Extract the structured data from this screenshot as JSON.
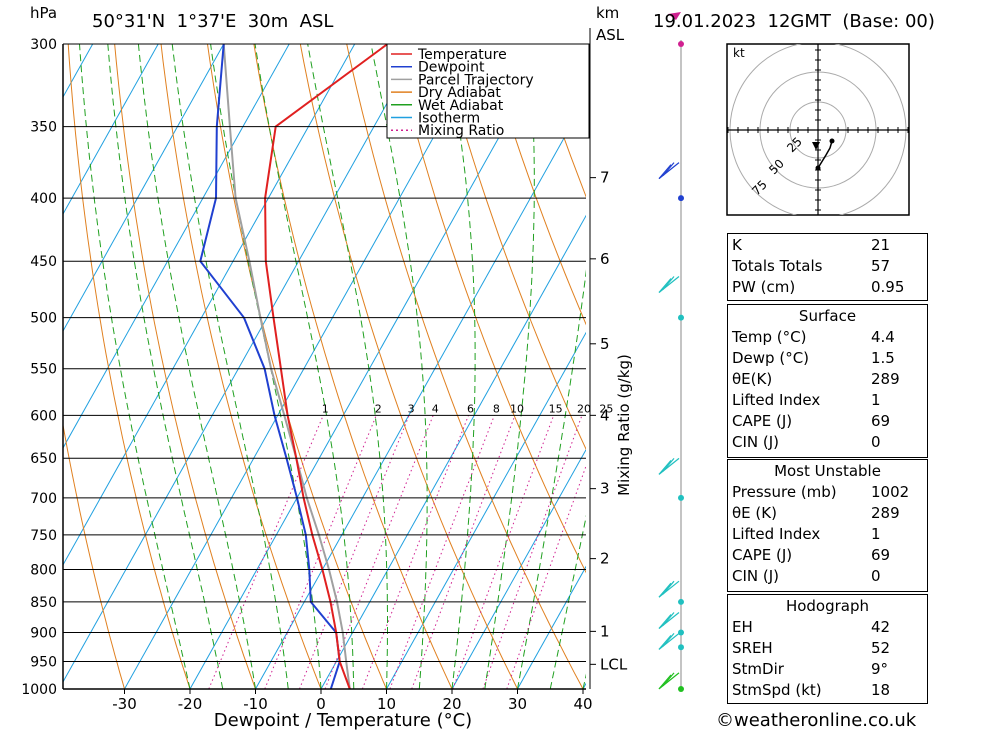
{
  "header": {
    "hpa_label": "hPa",
    "location": "50°31'N  1°37'E  30m  ASL",
    "km_label": "km",
    "asl_label": "ASL",
    "datetime": "19.01.2023  12GMT  (Base: 00)"
  },
  "chart_data": {
    "type": "line",
    "title": "Skew-T log-P diagram",
    "xlabel": "Dewpoint / Temperature (°C)",
    "ylabel": "hPa",
    "xticks": [
      -30,
      -20,
      -10,
      0,
      10,
      20,
      30,
      40
    ],
    "xtick_labels": [
      "-30",
      "-20",
      "-10",
      "0",
      "10",
      "20",
      "30",
      "40"
    ],
    "pressure_levels": [
      300,
      350,
      400,
      450,
      500,
      550,
      600,
      650,
      700,
      750,
      800,
      850,
      900,
      950,
      1000
    ],
    "pressure_labels": [
      "300",
      "350",
      "400",
      "450",
      "500",
      "550",
      "600",
      "650",
      "700",
      "750",
      "800",
      "850",
      "900",
      "950",
      "1000"
    ],
    "ylim": [
      300,
      1000
    ],
    "km_ticks": [
      {
        "label": "7",
        "pressure": 385
      },
      {
        "label": "6",
        "pressure": 448
      },
      {
        "label": "5",
        "pressure": 525
      },
      {
        "label": "4",
        "pressure": 600
      },
      {
        "label": "3",
        "pressure": 688
      },
      {
        "label": "2",
        "pressure": 784
      },
      {
        "label": "1",
        "pressure": 898
      },
      {
        "label": "LCL",
        "pressure": 955
      }
    ],
    "mixing_ratio_label": "Mixing Ratio (g/kg)",
    "mixing_ratio_values": [
      "1",
      "2",
      "3",
      "4",
      "6",
      "8",
      "10",
      "15",
      "20",
      "25"
    ],
    "legend_position": "top-right",
    "legend": [
      {
        "name": "Temperature",
        "color": "#e02020",
        "style": "solid"
      },
      {
        "name": "Dewpoint",
        "color": "#2040d0",
        "style": "solid"
      },
      {
        "name": "Parcel Trajectory",
        "color": "#a0a0a0",
        "style": "solid"
      },
      {
        "name": "Dry Adiabat",
        "color": "#e08020",
        "style": "solid"
      },
      {
        "name": "Wet Adiabat",
        "color": "#20a020",
        "style": "solid"
      },
      {
        "name": "Isotherm",
        "color": "#20a0e0",
        "style": "solid"
      },
      {
        "name": "Mixing Ratio",
        "color": "#d02090",
        "style": "dotted"
      }
    ],
    "series": [
      {
        "name": "Temperature",
        "points": [
          [
            1000,
            4.4
          ],
          [
            950,
            0.5
          ],
          [
            900,
            -2.5
          ],
          [
            850,
            -6
          ],
          [
            800,
            -10
          ],
          [
            750,
            -14.5
          ],
          [
            700,
            -19
          ],
          [
            650,
            -23.5
          ],
          [
            600,
            -28.5
          ],
          [
            550,
            -33.5
          ],
          [
            500,
            -39
          ],
          [
            450,
            -45
          ],
          [
            400,
            -50.5
          ],
          [
            350,
            -55
          ],
          [
            300,
            -45
          ]
        ]
      },
      {
        "name": "Dewpoint",
        "points": [
          [
            1000,
            1.5
          ],
          [
            950,
            0.5
          ],
          [
            900,
            -2.5
          ],
          [
            850,
            -9
          ],
          [
            800,
            -12
          ],
          [
            750,
            -15.5
          ],
          [
            700,
            -20
          ],
          [
            650,
            -25
          ],
          [
            600,
            -30.5
          ],
          [
            550,
            -36
          ],
          [
            500,
            -43.5
          ],
          [
            450,
            -55
          ],
          [
            400,
            -58
          ],
          [
            350,
            -64
          ],
          [
            300,
            -70
          ]
        ]
      },
      {
        "name": "Parcel Trajectory",
        "points": [
          [
            1000,
            4.4
          ],
          [
            950,
            1.5
          ],
          [
            900,
            -1.5
          ],
          [
            850,
            -5
          ],
          [
            800,
            -9
          ],
          [
            750,
            -13.5
          ],
          [
            700,
            -18.5
          ],
          [
            650,
            -23.5
          ],
          [
            600,
            -29
          ],
          [
            550,
            -35
          ],
          [
            500,
            -41
          ],
          [
            450,
            -47.5
          ],
          [
            400,
            -55
          ],
          [
            350,
            -62
          ],
          [
            300,
            -70
          ]
        ]
      }
    ]
  },
  "hodograph": {
    "unit_label": "kt",
    "ring_labels": [
      "25",
      "50",
      "75"
    ]
  },
  "indices": [
    {
      "label": "K",
      "value": "21"
    },
    {
      "label": "Totals Totals",
      "value": "57"
    },
    {
      "label": "PW (cm)",
      "value": "0.95"
    }
  ],
  "surface": {
    "title": "Surface",
    "rows": [
      {
        "label": "Temp (°C)",
        "value": "4.4"
      },
      {
        "label": "Dewp (°C)",
        "value": "1.5"
      },
      {
        "label": "θE(K)",
        "value": "289"
      },
      {
        "label": "Lifted Index",
        "value": "1"
      },
      {
        "label": "CAPE (J)",
        "value": "69"
      },
      {
        "label": "CIN (J)",
        "value": "0"
      }
    ]
  },
  "most_unstable": {
    "title": "Most Unstable",
    "rows": [
      {
        "label": "Pressure (mb)",
        "value": "1002"
      },
      {
        "label": "θE (K)",
        "value": "289"
      },
      {
        "label": "Lifted Index",
        "value": "1"
      },
      {
        "label": "CAPE (J)",
        "value": "69"
      },
      {
        "label": "CIN (J)",
        "value": "0"
      }
    ]
  },
  "hodograph_stats": {
    "title": "Hodograph",
    "rows": [
      {
        "label": "EH",
        "value": "42"
      },
      {
        "label": "SREH",
        "value": "52"
      },
      {
        "label": "StmDir",
        "value": "9°"
      },
      {
        "label": "StmSpd (kt)",
        "value": "18"
      }
    ]
  },
  "footer": {
    "credit": "©weatheronline.co.uk"
  }
}
